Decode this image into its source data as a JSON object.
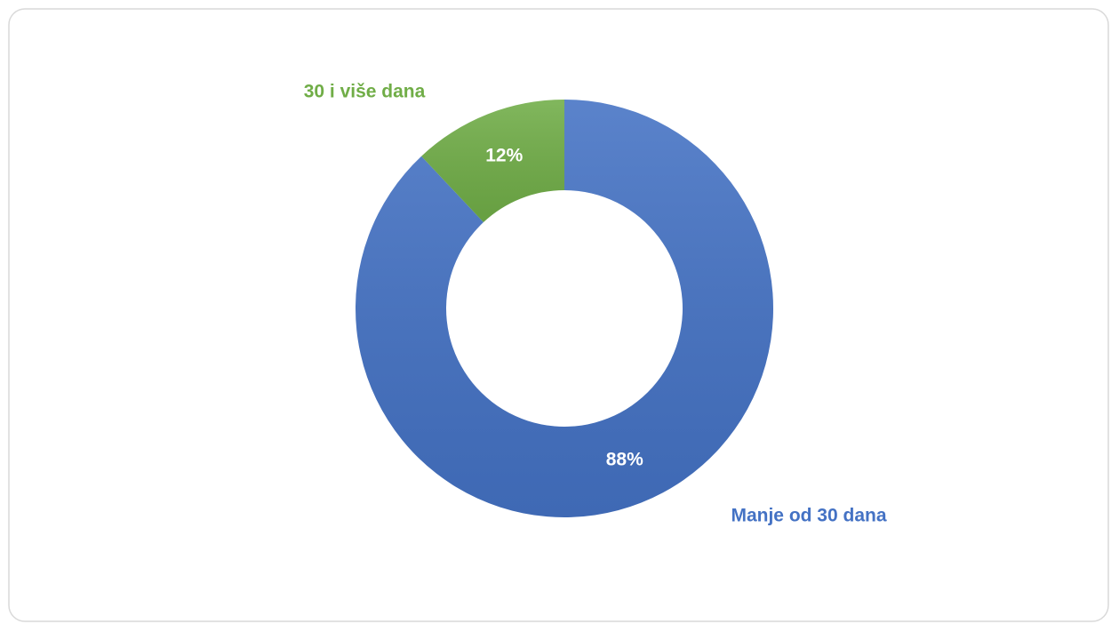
{
  "chart_data": {
    "type": "donut",
    "categories": [
      "Manje od 30 dana",
      "30 i više dana"
    ],
    "values": [
      88,
      12
    ],
    "value_labels": [
      "88%",
      "12%"
    ],
    "colors": [
      "#4472c4",
      "#70ad47"
    ]
  }
}
